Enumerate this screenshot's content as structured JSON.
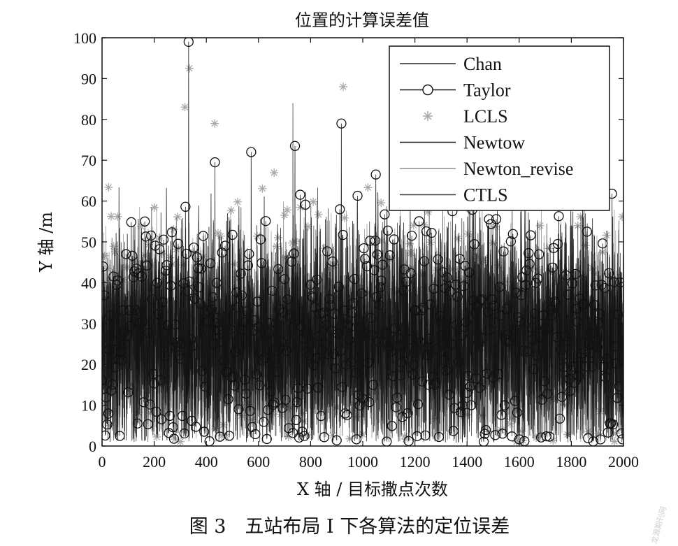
{
  "chart_data": {
    "type": "line",
    "title": "位置的计算误差值",
    "xlabel": "X 轴 / 目标撒点次数",
    "ylabel": "Y 轴 /m",
    "xlim": [
      0,
      2000
    ],
    "ylim": [
      0,
      100
    ],
    "x_ticks": [
      "0",
      "200",
      "400",
      "600",
      "800",
      "1000",
      "1200",
      "1400",
      "1600",
      "1800",
      "2000"
    ],
    "y_ticks": [
      "0",
      "10",
      "20",
      "30",
      "40",
      "50",
      "60",
      "70",
      "80",
      "90",
      "100"
    ],
    "grid": false,
    "legend_position": "top-right",
    "n_points": 2000,
    "series": [
      {
        "name": "Chan",
        "style": "line",
        "color": "#2a2a2a",
        "mean": 25,
        "spread": 13
      },
      {
        "name": "Taylor",
        "style": "line-circle",
        "color": "#111111",
        "mean": 27,
        "spread": 15
      },
      {
        "name": "LCLS",
        "style": "star",
        "color": "#a8a8a8",
        "mean": 30,
        "spread": 16
      },
      {
        "name": "Newtow",
        "style": "line",
        "color": "#1a1a1a",
        "mean": 26,
        "spread": 13
      },
      {
        "name": "Newton_revise",
        "style": "line",
        "color": "#8c8c8c",
        "mean": 26,
        "spread": 13
      },
      {
        "name": "CTLS",
        "style": "line",
        "color": "#444444",
        "mean": 25,
        "spread": 12
      }
    ],
    "peaks": [
      {
        "series": "Taylor",
        "x": 332,
        "y": 99
      },
      {
        "series": "LCLS",
        "x": 335,
        "y": 92.5
      },
      {
        "series": "LCLS",
        "x": 318,
        "y": 83
      },
      {
        "series": "Chan",
        "x": 732,
        "y": 84
      },
      {
        "series": "Taylor",
        "x": 918,
        "y": 79
      },
      {
        "series": "LCLS",
        "x": 925,
        "y": 88
      },
      {
        "series": "LCLS",
        "x": 432,
        "y": 79
      },
      {
        "series": "Taylor",
        "x": 740,
        "y": 73.5
      },
      {
        "series": "Taylor",
        "x": 572,
        "y": 72
      },
      {
        "series": "Taylor",
        "x": 433,
        "y": 69.5
      },
      {
        "series": "Taylor",
        "x": 1050,
        "y": 66.5
      }
    ]
  },
  "caption": "图 3　五站布局 I 下各算法的定位误差",
  "watermark": "龙源期刊网",
  "colors": {
    "axis": "#111111",
    "background": "#ffffff"
  }
}
